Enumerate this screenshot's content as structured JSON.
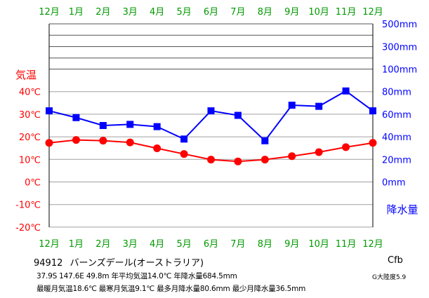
{
  "chart_data": {
    "type": "line",
    "months": [
      "12月",
      "1月",
      "2月",
      "3月",
      "4月",
      "5月",
      "6月",
      "7月",
      "8月",
      "9月",
      "10月",
      "11月",
      "12月"
    ],
    "temp_axis": {
      "title": "気温",
      "ticks": [
        40,
        30,
        20,
        10,
        0,
        -10,
        -20
      ],
      "tick_labels": [
        "40℃",
        "30℃",
        "20℃",
        "10℃",
        "0℃",
        "-10℃",
        "-20℃"
      ],
      "range": [
        -20,
        40
      ]
    },
    "precip_axis": {
      "title": "降水量",
      "lower_ticks": [
        0,
        20,
        40,
        60,
        80
      ],
      "lower_tick_labels": [
        "0mm",
        "20mm",
        "40mm",
        "60mm",
        "80mm"
      ],
      "upper_ticks": [
        100,
        300,
        500
      ],
      "upper_tick_labels": [
        "100mm",
        "300mm",
        "500mm"
      ],
      "range": [
        0,
        500
      ]
    },
    "series": [
      {
        "axis": "temperature",
        "color": "#ff0000",
        "marker": "circle",
        "values": [
          17.3,
          18.6,
          18.3,
          17.5,
          14.9,
          12.4,
          9.9,
          9.1,
          9.9,
          11.4,
          13.2,
          15.4,
          17.3
        ]
      },
      {
        "axis": "precipitation",
        "color": "#0000ff",
        "marker": "square",
        "values": [
          63,
          57,
          50,
          51,
          49,
          38,
          63,
          59,
          36.5,
          68,
          67,
          80.6,
          63
        ]
      }
    ],
    "grid": true,
    "colors": {
      "month_labels": "#009900",
      "temp_labels": "#ff0000",
      "precip_labels": "#0000ff"
    }
  },
  "station": {
    "id": "94912",
    "name": "バーンズデール(オーストラリア)"
  },
  "stats": {
    "line1": "37.9S  147.6E  49.8m  年平均気温14.0℃  年降水量684.5mm",
    "line2": "最暖月気温18.6℃ 最寒月気温9.1℃ 最多月降水量80.6mm 最少月降水量36.5mm"
  },
  "climate_class": "Cfb",
  "continent_code": "G大陸度5.9"
}
